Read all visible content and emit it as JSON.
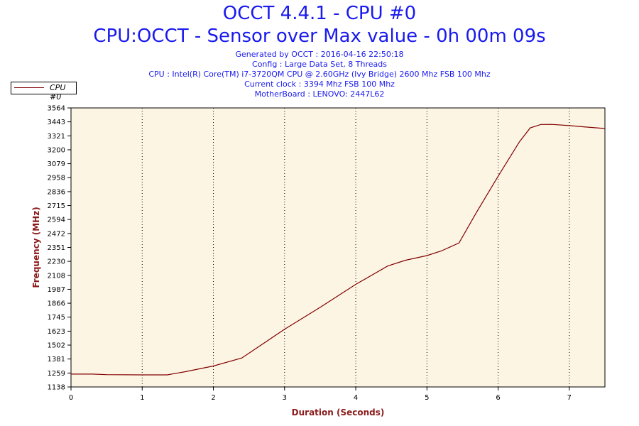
{
  "header": {
    "title": "OCCT 4.4.1 - CPU #0",
    "subtitle": "CPU:OCCT - Sensor over Max value - 0h 00m 09s",
    "info": [
      "Generated by OCCT : 2016-04-16 22:50:18",
      "Config : Large Data Set, 8 Threads",
      "CPU : Intel(R) Core(TM) i7-3720QM CPU @ 2.60GHz (Ivy Bridge) 2600 Mhz FSB 100 Mhz",
      "Current clock : 3394 Mhz FSB 100 Mhz",
      "MotherBoard : LENOVO: 2447L62"
    ]
  },
  "colors": {
    "title": "#1a1aee",
    "axis_label": "#8b1a1a",
    "line": "#800000",
    "plot_bg": "#fdf5e4"
  },
  "chart_data": {
    "type": "line",
    "xlabel": "Duration (Seconds)",
    "ylabel": "Frequency (MHz)",
    "xlim": [
      0,
      7.5
    ],
    "ylim": [
      1138,
      3564
    ],
    "xticks": [
      0,
      1,
      2,
      3,
      4,
      5,
      6,
      7
    ],
    "yticks": [
      1138,
      1259,
      1381,
      1502,
      1623,
      1745,
      1866,
      1987,
      2108,
      2230,
      2351,
      2472,
      2594,
      2715,
      2836,
      2958,
      3079,
      3200,
      3321,
      3443,
      3564
    ],
    "grid": "vertical dotted",
    "legend_position": "top-left",
    "series": [
      {
        "name": "CPU #0",
        "x": [
          0,
          0.3,
          0.5,
          1.0,
          1.35,
          1.6,
          2.0,
          2.4,
          3.0,
          3.5,
          4.0,
          4.45,
          4.7,
          5.0,
          5.2,
          5.45,
          5.7,
          6.0,
          6.3,
          6.45,
          6.6,
          6.75,
          7.0,
          7.2,
          7.5
        ],
        "values": [
          1250,
          1250,
          1245,
          1243,
          1243,
          1270,
          1320,
          1390,
          1640,
          1830,
          2030,
          2190,
          2240,
          2280,
          2320,
          2390,
          2660,
          2970,
          3270,
          3390,
          3420,
          3421,
          3410,
          3400,
          3385
        ]
      }
    ]
  }
}
